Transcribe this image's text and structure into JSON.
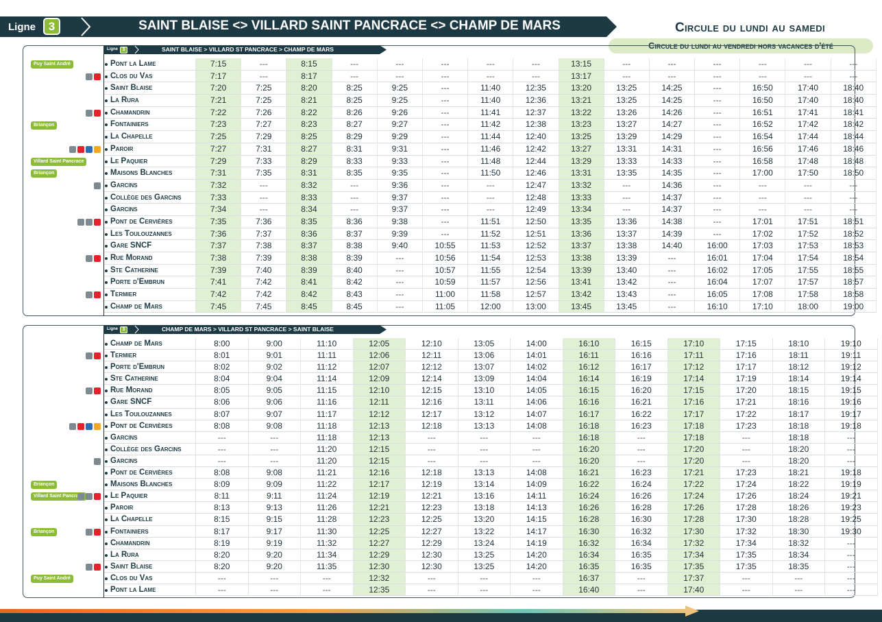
{
  "header": {
    "ligne_label": "Ligne",
    "ligne_number": "3",
    "title": "SAINT BLAISE <> VILLARD SAINT PANCRACE <> CHAMP DE MARS",
    "circulation_main": "Circule du lundi au samedi",
    "circulation_note": "Circule du lundi au vendredi hors vacances d'été"
  },
  "colors": {
    "dark": "#1d3a44",
    "green": "#8cbb3a",
    "highlight": "#e1f0d3"
  },
  "outbound": {
    "ligne_label": "Ligne",
    "ligne_number": "3",
    "subtitle": "SAINT BLAISE > VILLARD ST PANCRACE > CHAMP DE MARS",
    "highlight_cols": [
      0,
      2,
      8
    ],
    "stops": [
      "Pont la Lame",
      "Clos du Vas",
      "Saint Blaise",
      "La Rura",
      "Chamandrin",
      "Fontainiers",
      "La Chapelle",
      "Paroir",
      "Le Paquier",
      "Maisons Blanches",
      "Garcins",
      "Collège des Garcins",
      "Garcins",
      "Pont de Cervières",
      "Les Toulouzannes",
      "Gare SNCF",
      "Rue Morand",
      "Ste Catherine",
      "Porte d'Embrun",
      "Termier",
      "Champ de Mars"
    ],
    "tags": [
      {
        "text": "Puy Saint André",
        "row": 0
      },
      {
        "text": "Briançon",
        "row": 5
      },
      {
        "text": "Villard Saint Pancrace",
        "row": 8
      },
      {
        "text": "Briançon",
        "row": 9
      }
    ],
    "rows": [
      [
        "7:15",
        "---",
        "8:15",
        "---",
        "---",
        "---",
        "---",
        "---",
        "13:15",
        "---",
        "---",
        "---",
        "---",
        "---",
        "---"
      ],
      [
        "7:17",
        "---",
        "8:17",
        "---",
        "---",
        "---",
        "---",
        "---",
        "13:17",
        "---",
        "---",
        "---",
        "---",
        "---",
        "---"
      ],
      [
        "7:20",
        "7:25",
        "8:20",
        "8:25",
        "9:25",
        "---",
        "11:40",
        "12:35",
        "13:20",
        "13:25",
        "14:25",
        "---",
        "16:50",
        "17:40",
        "18:40"
      ],
      [
        "7:21",
        "7:25",
        "8:21",
        "8:25",
        "9:25",
        "---",
        "11:40",
        "12:36",
        "13:21",
        "13:25",
        "14:25",
        "---",
        "16:50",
        "17:40",
        "18:40"
      ],
      [
        "7:22",
        "7:26",
        "8:22",
        "8:26",
        "9:26",
        "---",
        "11:41",
        "12:37",
        "13:22",
        "13:26",
        "14:26",
        "---",
        "16:51",
        "17:41",
        "18:41"
      ],
      [
        "7:23",
        "7:27",
        "8:23",
        "8:27",
        "9:27",
        "---",
        "11:42",
        "12:38",
        "13:23",
        "13:27",
        "14:27",
        "---",
        "16:52",
        "17:42",
        "18:42"
      ],
      [
        "7:25",
        "7:29",
        "8:25",
        "8:29",
        "9:29",
        "---",
        "11:44",
        "12:40",
        "13:25",
        "13:29",
        "14:29",
        "---",
        "16:54",
        "17:44",
        "18:44"
      ],
      [
        "7:27",
        "7:31",
        "8:27",
        "8:31",
        "9:31",
        "---",
        "11:46",
        "12:42",
        "13:27",
        "13:31",
        "14:31",
        "---",
        "16:56",
        "17:46",
        "18:46"
      ],
      [
        "7:29",
        "7:33",
        "8:29",
        "8:33",
        "9:33",
        "---",
        "11:48",
        "12:44",
        "13:29",
        "13:33",
        "14:33",
        "---",
        "16:58",
        "17:48",
        "18:48"
      ],
      [
        "7:31",
        "7:35",
        "8:31",
        "8:35",
        "9:35",
        "---",
        "11:50",
        "12:46",
        "13:31",
        "13:35",
        "14:35",
        "---",
        "17:00",
        "17:50",
        "18:50"
      ],
      [
        "7:32",
        "---",
        "8:32",
        "---",
        "9:36",
        "---",
        "---",
        "12:47",
        "13:32",
        "---",
        "14:36",
        "---",
        "---",
        "---",
        "---"
      ],
      [
        "7:33",
        "---",
        "8:33",
        "---",
        "9:37",
        "---",
        "---",
        "12:48",
        "13:33",
        "---",
        "14:37",
        "---",
        "---",
        "---",
        "---"
      ],
      [
        "7:34",
        "---",
        "8:34",
        "---",
        "9:37",
        "---",
        "---",
        "12:49",
        "13:34",
        "---",
        "14:37",
        "---",
        "---",
        "---",
        "---"
      ],
      [
        "7:35",
        "7:36",
        "8:35",
        "8:36",
        "9:38",
        "---",
        "11:51",
        "12:50",
        "13:35",
        "13:36",
        "14:38",
        "---",
        "17:01",
        "17:51",
        "18:51"
      ],
      [
        "7:36",
        "7:37",
        "8:36",
        "8:37",
        "9:39",
        "---",
        "11:52",
        "12:51",
        "13:36",
        "13:37",
        "14:39",
        "---",
        "17:02",
        "17:52",
        "18:52"
      ],
      [
        "7:37",
        "7:38",
        "8:37",
        "8:38",
        "9:40",
        "10:55",
        "11:53",
        "12:52",
        "13:37",
        "13:38",
        "14:40",
        "16:00",
        "17:03",
        "17:53",
        "18:53"
      ],
      [
        "7:38",
        "7:39",
        "8:38",
        "8:39",
        "---",
        "10:56",
        "11:54",
        "12:53",
        "13:38",
        "13:39",
        "---",
        "16:01",
        "17:04",
        "17:54",
        "18:54"
      ],
      [
        "7:39",
        "7:40",
        "8:39",
        "8:40",
        "---",
        "10:57",
        "11:55",
        "12:54",
        "13:39",
        "13:40",
        "---",
        "16:02",
        "17:05",
        "17:55",
        "18:55"
      ],
      [
        "7:41",
        "7:42",
        "8:41",
        "8:42",
        "---",
        "10:59",
        "11:57",
        "12:56",
        "13:41",
        "13:42",
        "---",
        "16:04",
        "17:07",
        "17:57",
        "18:57"
      ],
      [
        "7:42",
        "7:42",
        "8:42",
        "8:43",
        "---",
        "11:00",
        "11:58",
        "12:57",
        "13:42",
        "13:43",
        "---",
        "16:05",
        "17:08",
        "17:58",
        "18:58"
      ],
      [
        "7:45",
        "7:45",
        "8:45",
        "8:45",
        "---",
        "11:05",
        "12:00",
        "13:00",
        "13:45",
        "13:45",
        "---",
        "16:10",
        "17:10",
        "18:00",
        "19:00"
      ]
    ]
  },
  "inbound": {
    "ligne_label": "Ligne",
    "ligne_number": "3",
    "subtitle": "CHAMP DE MARS > VILLARD ST PANCRACE > SAINT BLAISE",
    "highlight_cols": [
      3,
      7,
      9
    ],
    "stops": [
      "Champ de Mars",
      "Termier",
      "Porte d'Embrun",
      "Ste Catherine",
      "Rue Morand",
      "Gare SNCF",
      "Les Toulouzannes",
      "Pont de Cervières",
      "Garcins",
      "Collège des Garcins",
      "Garcins",
      "Pont de Cervières",
      "Maisons Blanches",
      "Le Paquier",
      "Paroir",
      "La Chapelle",
      "Fontainiers",
      "Chamandrin",
      "La Rura",
      "Saint Blaise",
      "Clos du Vas",
      "Pont la Lame"
    ],
    "tags": [
      {
        "text": "Briançon",
        "row": 12
      },
      {
        "text": "Villard Saint Pancrace",
        "row": 13
      },
      {
        "text": "Briançon",
        "row": 16
      },
      {
        "text": "Puy Saint André",
        "row": 20
      }
    ],
    "rows": [
      [
        "8:00",
        "9:00",
        "11:10",
        "12:05",
        "12:10",
        "13:05",
        "14:00",
        "16:10",
        "16:15",
        "17:10",
        "17:15",
        "18:10",
        "19:10"
      ],
      [
        "8:01",
        "9:01",
        "11:11",
        "12:06",
        "12:11",
        "13:06",
        "14:01",
        "16:11",
        "16:16",
        "17:11",
        "17:16",
        "18:11",
        "19:11"
      ],
      [
        "8:02",
        "9:02",
        "11:12",
        "12:07",
        "12:12",
        "13:07",
        "14:02",
        "16:12",
        "16:17",
        "17:12",
        "17:17",
        "18:12",
        "19:12"
      ],
      [
        "8:04",
        "9:04",
        "11:14",
        "12:09",
        "12:14",
        "13:09",
        "14:04",
        "16:14",
        "16:19",
        "17:14",
        "17:19",
        "18:14",
        "19:14"
      ],
      [
        "8:05",
        "9:05",
        "11:15",
        "12:10",
        "12:15",
        "13:10",
        "14:05",
        "16:15",
        "16:20",
        "17:15",
        "17:20",
        "18:15",
        "19:15"
      ],
      [
        "8:06",
        "9:06",
        "11:16",
        "12:11",
        "12:16",
        "13:11",
        "14:06",
        "16:16",
        "16:21",
        "17:16",
        "17:21",
        "18:16",
        "19:16"
      ],
      [
        "8:07",
        "9:07",
        "11:17",
        "12:12",
        "12:17",
        "13:12",
        "14:07",
        "16:17",
        "16:22",
        "17:17",
        "17:22",
        "18:17",
        "19:17"
      ],
      [
        "8:08",
        "9:08",
        "11:18",
        "12:13",
        "12:18",
        "13:13",
        "14:08",
        "16:18",
        "16:23",
        "17:18",
        "17:23",
        "18:18",
        "19:18"
      ],
      [
        "---",
        "---",
        "11:18",
        "12:13",
        "---",
        "---",
        "---",
        "16:18",
        "---",
        "17:18",
        "---",
        "18:18",
        "---"
      ],
      [
        "---",
        "---",
        "11:20",
        "12:15",
        "---",
        "---",
        "---",
        "16:20",
        "---",
        "17:20",
        "---",
        "18:20",
        "---"
      ],
      [
        "---",
        "---",
        "11:20",
        "12:15",
        "---",
        "---",
        "---",
        "16:20",
        "---",
        "17:20",
        "---",
        "18:20",
        "---"
      ],
      [
        "8:08",
        "9:08",
        "11:21",
        "12:16",
        "12:18",
        "13:13",
        "14:08",
        "16:21",
        "16:23",
        "17:21",
        "17:23",
        "18:21",
        "19:18"
      ],
      [
        "8:09",
        "9:09",
        "11:22",
        "12:17",
        "12:19",
        "13:14",
        "14:09",
        "16:22",
        "16:24",
        "17:22",
        "17:24",
        "18:22",
        "19:19"
      ],
      [
        "8:11",
        "9:11",
        "11:24",
        "12:19",
        "12:21",
        "13:16",
        "14:11",
        "16:24",
        "16:26",
        "17:24",
        "17:26",
        "18:24",
        "19:21"
      ],
      [
        "8:13",
        "9:13",
        "11:26",
        "12:21",
        "12:23",
        "13:18",
        "14:13",
        "16:26",
        "16:28",
        "17:26",
        "17:28",
        "18:26",
        "19:23"
      ],
      [
        "8:15",
        "9:15",
        "11:28",
        "12:23",
        "12:25",
        "13:20",
        "14:15",
        "16:28",
        "16:30",
        "17:28",
        "17:30",
        "18:28",
        "19:25"
      ],
      [
        "8:17",
        "9:17",
        "11:30",
        "12:25",
        "12:27",
        "13:22",
        "14:17",
        "16:30",
        "16:32",
        "17:30",
        "17:32",
        "18:30",
        "19:30"
      ],
      [
        "8:19",
        "9:19",
        "11:32",
        "12:27",
        "12:29",
        "13:24",
        "14:19",
        "16:32",
        "16:34",
        "17:32",
        "17:34",
        "18:32",
        "---"
      ],
      [
        "8:20",
        "9:20",
        "11:34",
        "12:29",
        "12:30",
        "13:25",
        "14:20",
        "16:34",
        "16:35",
        "17:34",
        "17:35",
        "18:34",
        "---"
      ],
      [
        "8:20",
        "9:20",
        "11:35",
        "12:30",
        "12:30",
        "13:25",
        "14:20",
        "16:35",
        "16:35",
        "17:35",
        "17:35",
        "18:35",
        "---"
      ],
      [
        "---",
        "---",
        "---",
        "12:32",
        "---",
        "---",
        "---",
        "16:37",
        "---",
        "17:37",
        "---",
        "---",
        "---"
      ],
      [
        "---",
        "---",
        "---",
        "12:35",
        "---",
        "---",
        "---",
        "16:40",
        "---",
        "17:40",
        "---",
        "---",
        "---"
      ]
    ]
  }
}
